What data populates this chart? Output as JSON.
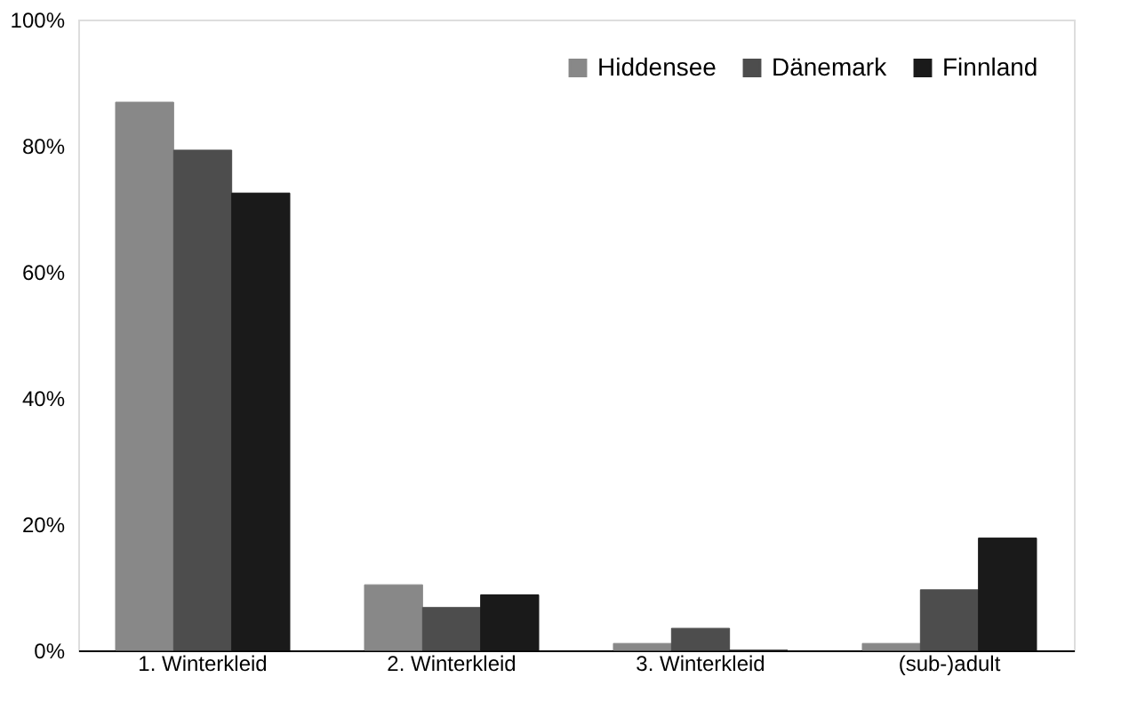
{
  "chart_data": {
    "type": "bar",
    "categories": [
      "1. Winterkleid",
      "2. Winterkleid",
      "3. Winterkleid",
      "(sub-)adult"
    ],
    "series": [
      {
        "name": "Hiddensee",
        "color": "#888888",
        "values": [
          86.9,
          10.4,
          1.1,
          1.1
        ]
      },
      {
        "name": "Dänemark",
        "color": "#4d4d4d",
        "values": [
          79.3,
          6.8,
          3.5,
          9.6
        ]
      },
      {
        "name": "Finnland",
        "color": "#1a1a1a",
        "values": [
          72.5,
          8.8,
          0,
          17.8
        ]
      }
    ],
    "ylim": [
      0,
      100
    ],
    "yticks": [
      {
        "value": 0,
        "label": "0%"
      },
      {
        "value": 20,
        "label": "20%"
      },
      {
        "value": 40,
        "label": "40%"
      },
      {
        "value": 60,
        "label": "60%"
      },
      {
        "value": 80,
        "label": "80%"
      },
      {
        "value": 100,
        "label": "100%"
      }
    ],
    "grid": false,
    "legend": "top right"
  }
}
